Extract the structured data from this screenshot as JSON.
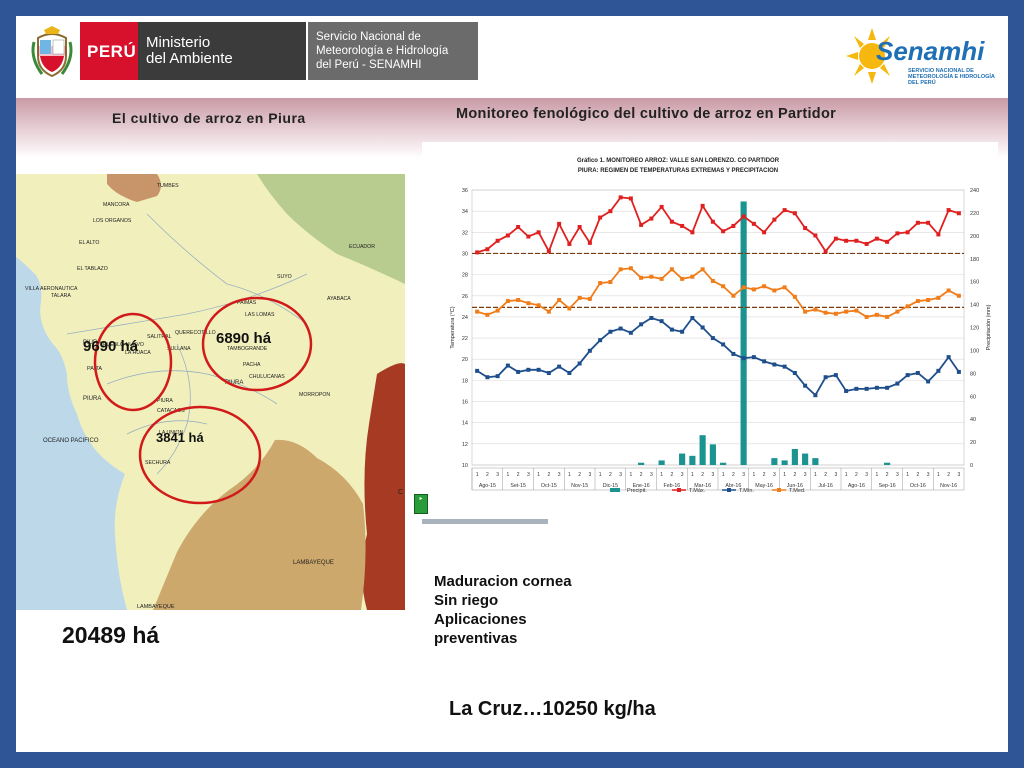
{
  "header": {
    "peru": "PERÚ",
    "ministry_line1": "Ministerio",
    "ministry_line2": "del Ambiente",
    "service_line1": "Servicio Nacional de",
    "service_line2": "Meteorología e Hidrología",
    "service_line3": "del Perú - SENAMHI",
    "logo_word": "Senamhi",
    "logo_sub": "SERVICIO NACIONAL DE METEOROLOGÍA E HIDROLOGÍA DEL PERÚ"
  },
  "titles": {
    "left": "El cultivo de arroz en Piura",
    "right": "Monitoreo fenológico del cultivo de arroz en Partidor"
  },
  "map": {
    "places": {
      "tumbes": "TUMBES",
      "mancora": "MANCORA",
      "los_organos": "LOS ORGANOS",
      "el_alto": "EL ALTO",
      "ecuador": "ECUADOR",
      "el_tablazo": "EL TABLAZO",
      "villa_aeronautica": "VILLA AERONAUTICA",
      "talara": "TALARA",
      "ayabaca": "AYABACA",
      "suyo": "SUYO",
      "paimas": "PAIMAS",
      "las_lomas": "LAS LOMAS",
      "salitral": "SALITRAL",
      "querecotillo": "QUERECOTILLO",
      "sullana": "SULLANA",
      "pueblo_nuevo": "PUEBLO NUEVO",
      "la_huaca": "LA HUACA",
      "paita": "PAITA",
      "piura_upper": "PIURA",
      "piura_city": "PIURA",
      "piura_lower": "PIURA",
      "tambogrande": "TAMBOGRANDE",
      "pacha": "PACHA",
      "chulucanas": "CHULUCANAS",
      "morropon": "MORROPON",
      "catacaos": "CATACAOS",
      "la_union": "LA UNION",
      "sechura": "SECHURA",
      "oceano": "OCEANO PACIFICO",
      "lambayeque": "LAMBAYEQUE",
      "lambayeque_city": "LAMBAYEQUE",
      "c": "C"
    },
    "area_sullana": "9690 há",
    "area_tambogrande": "6890 há",
    "area_piura": "3841 há"
  },
  "total_area": "20489 há",
  "chart_data": {
    "type": "line",
    "title": "Gráfico 1. MONITOREO ARROZ: VALLE SAN LORENZO. CO PARTIDOR",
    "subtitle": "PIURA: REGIMEN DE TEMPERATURAS EXTREMAS Y PRECIPITACION",
    "ylabel": "Temperatura (°C)",
    "y2label": "Precipitación (mm)",
    "ylim": [
      10,
      36
    ],
    "y2lim": [
      0,
      240
    ],
    "yticks": [
      "10",
      "12",
      "14",
      "16",
      "18",
      "20",
      "22",
      "24",
      "26",
      "28",
      "30",
      "32",
      "34",
      "36"
    ],
    "y2ticks": [
      "0",
      "20",
      "40",
      "60",
      "80",
      "100",
      "120",
      "140",
      "160",
      "180",
      "200",
      "220",
      "240"
    ],
    "decades": [
      "1",
      "2",
      "3",
      "1",
      "2",
      "3",
      "1",
      "2",
      "3",
      "1",
      "2",
      "3",
      "1",
      "2",
      "3",
      "1",
      "2",
      "3",
      "1",
      "2",
      "3",
      "1",
      "2",
      "3",
      "1",
      "2",
      "3",
      "1",
      "2",
      "3",
      "1",
      "2",
      "3",
      "1",
      "2",
      "3",
      "1",
      "2",
      "3",
      "1",
      "2",
      "3",
      "1",
      "2",
      "3",
      "1",
      "2",
      "3"
    ],
    "months": [
      "Ago-15",
      "Set-15",
      "Oct-15",
      "Nov-15",
      "Dic-15",
      "Ene-16",
      "Feb-16",
      "Mar-16",
      "Abr-16",
      "May-16",
      "Jun-16",
      "Jul-16",
      "Ago-16",
      "Sep-16",
      "Oct-16",
      "Nov-16"
    ],
    "series": [
      {
        "name": "Precipit.",
        "color": "#1a9391",
        "axis": "right",
        "values": [
          0,
          0,
          0,
          0,
          0,
          0,
          0,
          0,
          0,
          0,
          0,
          0,
          0,
          0,
          0,
          0,
          2,
          0,
          4,
          0,
          10,
          8,
          26,
          18,
          2,
          0,
          230,
          0,
          0,
          6,
          4,
          14,
          10,
          6,
          0,
          0,
          0,
          0,
          0,
          0,
          2,
          0,
          0,
          0,
          0,
          0,
          0,
          0
        ]
      },
      {
        "name": "T.Máx.",
        "color": "#e02020",
        "values": [
          30.1,
          30.4,
          31.2,
          31.7,
          32.5,
          31.6,
          32.0,
          30.2,
          32.8,
          30.9,
          32.5,
          31.0,
          33.4,
          34.0,
          35.3,
          35.2,
          32.7,
          33.3,
          34.4,
          33.0,
          32.6,
          32.0,
          34.5,
          33.0,
          32.1,
          32.6,
          33.5,
          32.8,
          32.0,
          33.2,
          34.1,
          33.8,
          32.4,
          31.7,
          30.2,
          31.4,
          31.2,
          31.2,
          30.9,
          31.4,
          31.1,
          31.9,
          32.0,
          32.9,
          32.9,
          31.8,
          34.1,
          33.8
        ]
      },
      {
        "name": "T.Mín.",
        "color": "#1e4f8c",
        "values": [
          18.9,
          18.3,
          18.4,
          19.4,
          18.8,
          19.0,
          19.0,
          18.7,
          19.3,
          18.7,
          19.6,
          20.8,
          21.8,
          22.6,
          22.9,
          22.5,
          23.3,
          23.9,
          23.6,
          22.8,
          22.6,
          23.9,
          23.0,
          22.0,
          21.4,
          20.5,
          20.1,
          20.2,
          19.8,
          19.5,
          19.3,
          18.7,
          17.5,
          16.6,
          18.3,
          18.5,
          17.0,
          17.2,
          17.2,
          17.3,
          17.3,
          17.7,
          18.5,
          18.7,
          17.9,
          18.9,
          20.2,
          18.8
        ]
      },
      {
        "name": "T.Med.",
        "color": "#f07d1a",
        "values": [
          24.5,
          24.2,
          24.6,
          25.5,
          25.6,
          25.3,
          25.1,
          24.5,
          25.6,
          24.8,
          25.8,
          25.7,
          27.2,
          27.3,
          28.5,
          28.6,
          27.7,
          27.8,
          27.6,
          28.5,
          27.6,
          27.8,
          28.5,
          27.4,
          26.9,
          26.0,
          26.8,
          26.6,
          26.9,
          26.5,
          26.8,
          25.9,
          24.5,
          24.7,
          24.4,
          24.3,
          24.5,
          24.6,
          24.0,
          24.2,
          24.0,
          24.5,
          25.0,
          25.5,
          25.6,
          25.8,
          26.5,
          26.0
        ]
      }
    ],
    "ref_lines": [
      30.0,
      24.9
    ],
    "legend": "bottom",
    "grid": true
  },
  "small_icon_text": "▸",
  "notes": [
    "Maduracion cornea",
    "Sin riego",
    "Aplicaciones",
    "preventivas"
  ],
  "yield_text": "La Cruz…10250 kg/ha"
}
